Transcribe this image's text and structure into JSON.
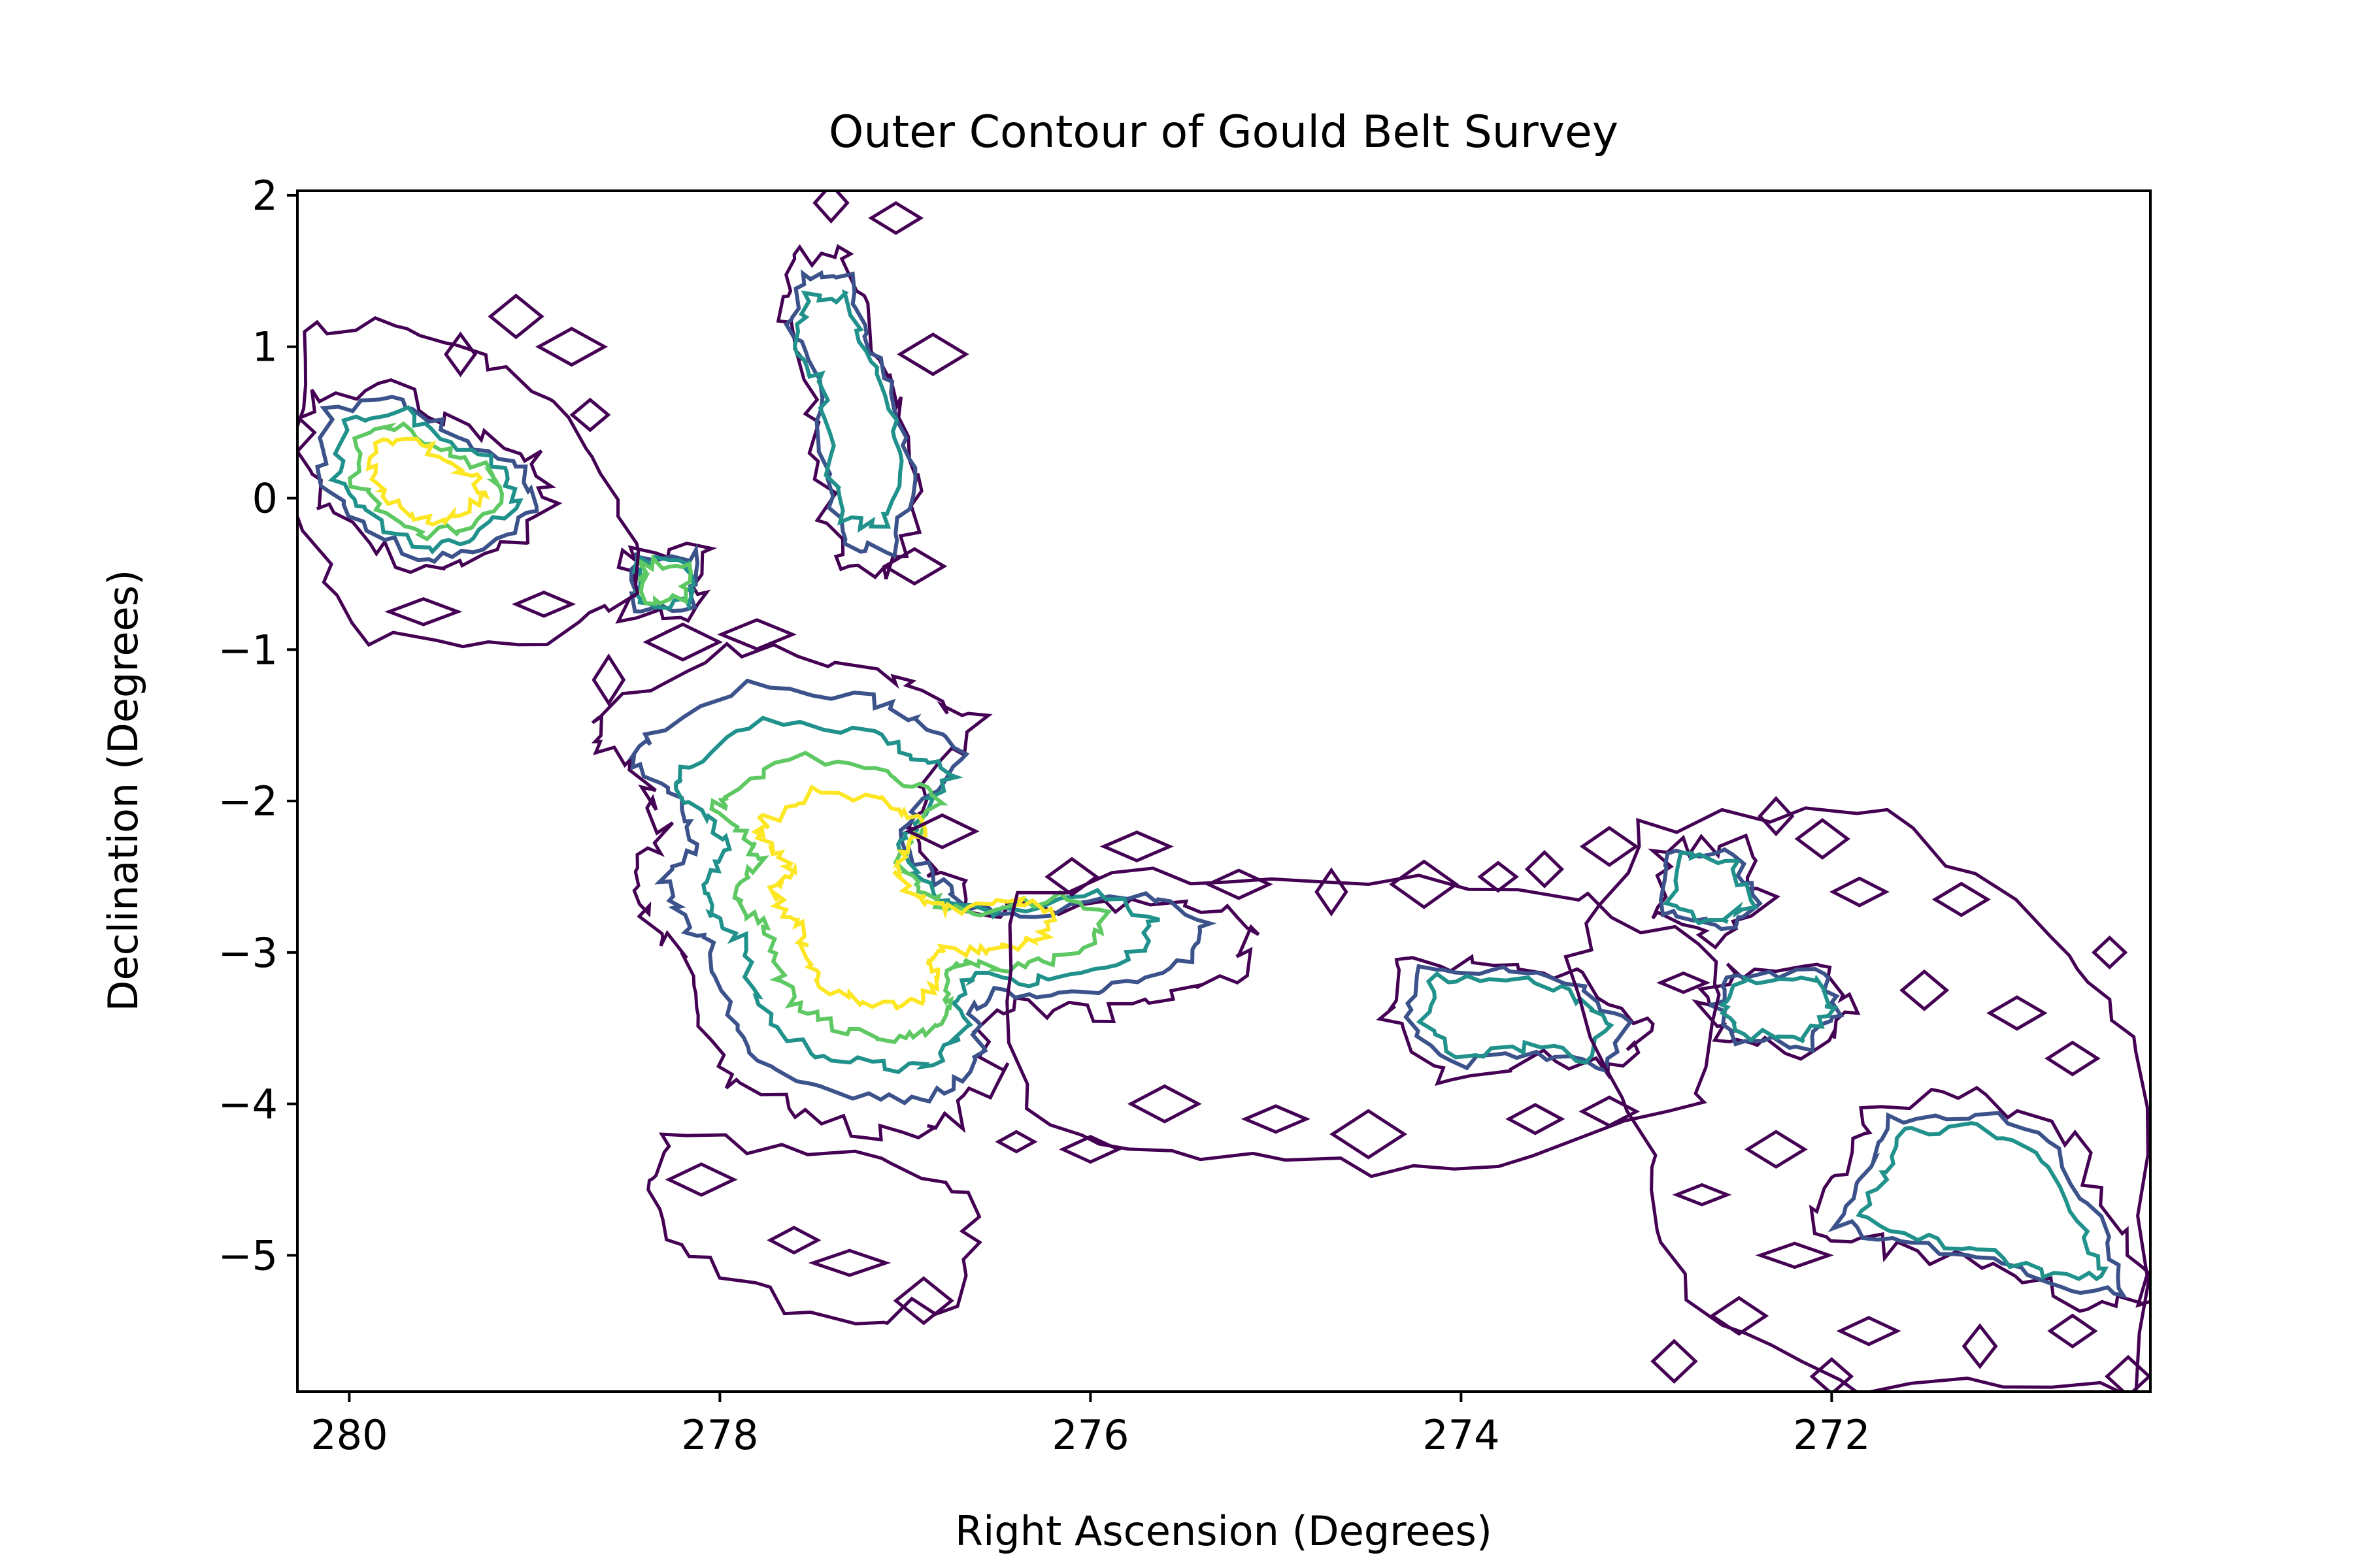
{
  "chart_data": {
    "type": "contour",
    "title": "Outer Contour of Gould Belt Survey",
    "xlabel": "Right Ascension (Degrees)",
    "ylabel": "Declination (Degrees)",
    "x_inverted": true,
    "xlim": [
      280.28,
      270.28
    ],
    "ylim": [
      -5.9,
      2.03
    ],
    "grid": false,
    "legend": "none",
    "x_ticks": [
      280,
      278,
      276,
      274,
      272
    ],
    "y_ticks": [
      2,
      1,
      0,
      -1,
      -2,
      -3,
      -4,
      -5
    ],
    "x_tick_labels": [
      "280",
      "278",
      "276",
      "274",
      "272"
    ],
    "y_tick_labels": [
      "2",
      "1",
      "0",
      "−1",
      "−2",
      "−3",
      "−4",
      "−5"
    ],
    "colormap": "viridis",
    "level_colors": [
      "#440154",
      "#3b528b",
      "#21918c",
      "#5ec962",
      "#fde725"
    ],
    "regions": [
      {
        "id": "serpens-main",
        "outline": [
          [
            278.6,
            -1.4
          ],
          [
            278.0,
            -1.0
          ],
          [
            277.2,
            -1.1
          ],
          [
            276.9,
            -1.3
          ],
          [
            276.6,
            -1.5
          ],
          [
            276.9,
            -1.9
          ],
          [
            277.0,
            -2.2
          ],
          [
            276.8,
            -2.5
          ],
          [
            276.6,
            -2.7
          ],
          [
            276.2,
            -2.75
          ],
          [
            275.5,
            -2.6
          ],
          [
            275.1,
            -2.8
          ],
          [
            275.2,
            -3.1
          ],
          [
            275.6,
            -3.3
          ],
          [
            276.0,
            -3.4
          ],
          [
            276.4,
            -3.35
          ],
          [
            276.6,
            -3.5
          ],
          [
            276.5,
            -3.8
          ],
          [
            276.7,
            -4.1
          ],
          [
            277.0,
            -4.2
          ],
          [
            277.5,
            -4.1
          ],
          [
            277.9,
            -3.9
          ],
          [
            278.1,
            -3.5
          ],
          [
            278.2,
            -3.0
          ],
          [
            278.4,
            -2.8
          ],
          [
            278.5,
            -2.5
          ],
          [
            278.3,
            -2.2
          ],
          [
            278.4,
            -1.9
          ],
          [
            278.7,
            -1.6
          ]
        ],
        "levels": [
          0,
          1,
          2,
          3,
          4
        ]
      },
      {
        "id": "serpens-north-knot",
        "outline": [
          [
            278.5,
            -0.35
          ],
          [
            278.1,
            -0.35
          ],
          [
            278.1,
            -0.75
          ],
          [
            278.5,
            -0.75
          ]
        ],
        "levels": [
          0,
          1,
          2,
          3
        ]
      },
      {
        "id": "aquila-west",
        "outline": [
          [
            280.2,
            0.65
          ],
          [
            279.75,
            0.75
          ],
          [
            279.4,
            0.45
          ],
          [
            279.0,
            0.25
          ],
          [
            278.9,
            -0.1
          ],
          [
            279.2,
            -0.4
          ],
          [
            279.6,
            -0.5
          ],
          [
            280.0,
            -0.2
          ],
          [
            280.25,
            0.1
          ]
        ],
        "levels": [
          0,
          1,
          2,
          3,
          4
        ]
      },
      {
        "id": "north-filament",
        "outline": [
          [
            277.6,
            1.6
          ],
          [
            277.3,
            1.6
          ],
          [
            277.2,
            1.1
          ],
          [
            277.0,
            0.6
          ],
          [
            276.9,
            0.0
          ],
          [
            277.05,
            -0.5
          ],
          [
            277.35,
            -0.45
          ],
          [
            277.45,
            0.1
          ],
          [
            277.5,
            0.8
          ],
          [
            277.7,
            1.2
          ]
        ],
        "levels": [
          0,
          1,
          2
        ]
      },
      {
        "id": "central-ridge",
        "outline": [
          [
            274.3,
            -3.05
          ],
          [
            273.8,
            -3.05
          ],
          [
            273.3,
            -3.2
          ],
          [
            273.0,
            -3.5
          ],
          [
            273.15,
            -3.8
          ],
          [
            273.6,
            -3.7
          ],
          [
            274.1,
            -3.8
          ],
          [
            274.4,
            -3.45
          ]
        ],
        "levels": [
          0,
          1,
          2
        ]
      },
      {
        "id": "east-clump-1",
        "outline": [
          [
            272.9,
            -2.3
          ],
          [
            272.5,
            -2.3
          ],
          [
            272.35,
            -2.7
          ],
          [
            272.6,
            -2.9
          ],
          [
            272.95,
            -2.75
          ]
        ],
        "levels": [
          0,
          1,
          2
        ]
      },
      {
        "id": "east-clump-2",
        "outline": [
          [
            272.55,
            -3.1
          ],
          [
            272.0,
            -3.1
          ],
          [
            271.9,
            -3.4
          ],
          [
            272.1,
            -3.65
          ],
          [
            272.55,
            -3.6
          ],
          [
            272.7,
            -3.35
          ]
        ],
        "levels": [
          0,
          1,
          2
        ]
      },
      {
        "id": "southeast-cloud",
        "outline": [
          [
            271.8,
            -4.0
          ],
          [
            271.2,
            -3.95
          ],
          [
            270.7,
            -4.25
          ],
          [
            270.4,
            -4.9
          ],
          [
            270.28,
            -5.35
          ],
          [
            270.7,
            -5.3
          ],
          [
            271.2,
            -5.05
          ],
          [
            271.7,
            -4.95
          ],
          [
            272.1,
            -4.8
          ],
          [
            271.9,
            -4.4
          ]
        ],
        "levels": [
          0,
          1,
          2
        ]
      },
      {
        "id": "southern-extension",
        "outline": [
          [
            278.3,
            -4.2
          ],
          [
            277.3,
            -4.35
          ],
          [
            276.6,
            -4.55
          ],
          [
            276.7,
            -5.3
          ],
          [
            277.4,
            -5.45
          ],
          [
            278.1,
            -5.05
          ],
          [
            278.4,
            -4.6
          ]
        ],
        "levels": [
          0
        ]
      },
      {
        "id": "central-diffuse",
        "outline": [
          [
            276.4,
            -2.55
          ],
          [
            275.0,
            -2.45
          ],
          [
            273.4,
            -2.6
          ],
          [
            272.6,
            -3.0
          ],
          [
            272.7,
            -4.05
          ],
          [
            274.0,
            -4.45
          ],
          [
            275.4,
            -4.35
          ],
          [
            276.4,
            -4.1
          ]
        ],
        "levels": [
          0
        ]
      },
      {
        "id": "east-diffuse",
        "outline": [
          [
            273.0,
            -2.15
          ],
          [
            271.7,
            -2.05
          ],
          [
            270.7,
            -3.05
          ],
          [
            270.3,
            -3.65
          ],
          [
            270.3,
            -5.9
          ],
          [
            271.8,
            -5.85
          ],
          [
            272.8,
            -5.3
          ],
          [
            273.0,
            -4.3
          ],
          [
            273.4,
            -3.1
          ]
        ],
        "levels": [
          0
        ]
      },
      {
        "id": "northwest-diffuse",
        "outline": [
          [
            280.28,
            1.15
          ],
          [
            279.7,
            1.15
          ],
          [
            279.1,
            0.85
          ],
          [
            278.7,
            0.3
          ],
          [
            278.4,
            -0.55
          ],
          [
            278.9,
            -0.95
          ],
          [
            279.9,
            -0.9
          ],
          [
            280.28,
            -0.1
          ]
        ],
        "levels": [
          0
        ]
      }
    ]
  }
}
